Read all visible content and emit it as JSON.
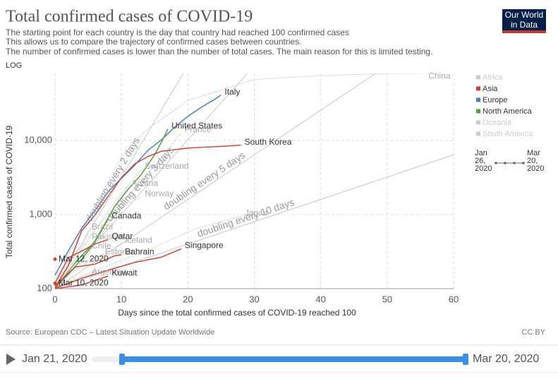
{
  "chart_data": {
    "type": "line",
    "title": "Total confirmed cases of COVID-19",
    "subtitle": [
      "The starting point for each country is the day that country had reached 100 confirmed cases",
      "This allows us to compare the trajectory of confirmed cases between countries.",
      "The number of confirmed cases is lower than the number of total cases. The main reason for this is limited testing."
    ],
    "scale_label": "LOG",
    "log_scale": true,
    "grid": true,
    "logo": [
      "Our World",
      "in Data"
    ],
    "x_label": "Days since the total confirmed cases of COVID-19 reached 100",
    "y_label": "Total confirmed cases of COVID-19",
    "source": "Source: European CDC – Latest Situation Update Worldwide",
    "license": "CC BY",
    "xlim": [
      0,
      60
    ],
    "xticks": [
      0,
      10,
      20,
      30,
      40,
      50,
      60
    ],
    "ylim": [
      100,
      80000
    ],
    "yticks": [
      100,
      {
        "value": 1000,
        "label": "1,000"
      },
      {
        "value": 10000,
        "label": "10,000"
      }
    ],
    "legend_position": "right",
    "regions": [
      {
        "name": "Africa",
        "color": "#cccccc",
        "active": false
      },
      {
        "name": "Asia",
        "color": "#d0453a",
        "active": true
      },
      {
        "name": "Europe",
        "color": "#4c7fc0",
        "active": true
      },
      {
        "name": "North America",
        "color": "#5a9f45",
        "active": true
      },
      {
        "name": "Oceania",
        "color": "#cccccc",
        "active": false
      },
      {
        "name": "South America",
        "color": "#cccccc",
        "active": false
      }
    ],
    "legend_dates": [
      "Jan 26, 2020",
      "Mar 20, 2020"
    ],
    "doubling_lines": [
      {
        "label": "doubling every 2 days",
        "days": 2
      },
      {
        "label": "doubling every 3 days",
        "days": 3
      },
      {
        "label": "doubling every 5 days",
        "days": 5
      },
      {
        "label": "doubling every 10 days",
        "days": 10
      }
    ],
    "series": [
      {
        "name": "China",
        "color": "#dddddd",
        "selected": false,
        "x": [
          0,
          2,
          4,
          6,
          8,
          10,
          12,
          14,
          20,
          30,
          40,
          50,
          59
        ],
        "values": [
          100,
          291,
          571,
          1287,
          2744,
          5974,
          9692,
          14380,
          34546,
          66492,
          75077,
          80026,
          80967
        ]
      },
      {
        "name": "France",
        "color": "#dddddd",
        "selected": false,
        "x": [
          0,
          5,
          10,
          15,
          19
        ],
        "values": [
          100,
          285,
          1412,
          4469,
          12612
        ]
      },
      {
        "name": "Switzerland",
        "color": "#dddddd",
        "selected": false,
        "x": [
          0,
          4,
          8,
          13
        ],
        "values": [
          100,
          337,
          1125,
          4075
        ]
      },
      {
        "name": "Austria",
        "color": "#dddddd",
        "selected": false,
        "x": [
          0,
          4,
          8,
          11
        ],
        "values": [
          102,
          246,
          860,
          2388
        ]
      },
      {
        "name": "Norway",
        "color": "#dddddd",
        "selected": false,
        "x": [
          0,
          4,
          8,
          13
        ],
        "values": [
          113,
          400,
          996,
          1742
        ]
      },
      {
        "name": "Brazil",
        "color": "#dddddd",
        "selected": false,
        "x": [
          0,
          3,
          5
        ],
        "values": [
          121,
          234,
          621
        ]
      },
      {
        "name": "Pakistan",
        "color": "#dddddd",
        "selected": false,
        "x": [
          0,
          3,
          5
        ],
        "values": [
          136,
          302,
          454
        ]
      },
      {
        "name": "Chile",
        "color": "#dddddd",
        "selected": false,
        "x": [
          0,
          3,
          5
        ],
        "values": [
          155,
          238,
          342
        ]
      },
      {
        "name": "Iceland",
        "color": "#dddddd",
        "selected": false,
        "x": [
          0,
          5,
          10
        ],
        "values": [
          117,
          225,
          409
        ]
      },
      {
        "name": "Estonia",
        "color": "#dddddd",
        "selected": false,
        "x": [
          0,
          4,
          7
        ],
        "values": [
          115,
          225,
          283
        ]
      },
      {
        "name": "Argentina",
        "color": "#dddddd",
        "selected": false,
        "x": [
          0,
          3,
          5
        ],
        "values": [
          100,
          128,
          152
        ]
      },
      {
        "name": "Japan",
        "color": "#dddddd",
        "selected": false,
        "x": [
          0,
          7,
          14,
          21,
          28
        ],
        "values": [
          105,
          190,
          331,
          639,
          950
        ]
      },
      {
        "name": "Italy",
        "color": "#4c7fc0",
        "selected": true,
        "x": [
          0,
          2,
          4,
          6,
          8,
          10,
          12,
          14,
          16,
          18,
          20,
          22,
          24,
          25
        ],
        "values": [
          152,
          322,
          650,
          1128,
          2036,
          3089,
          4636,
          7375,
          10149,
          15113,
          21157,
          27980,
          35713,
          41035
        ]
      },
      {
        "name": "United States",
        "color": "#5a9f45",
        "selected": true,
        "x": [
          0,
          3,
          6,
          9,
          11,
          13,
          15,
          16,
          17
        ],
        "values": [
          100,
          221,
          435,
          1301,
          2183,
          3499,
          6421,
          9415,
          14250
        ]
      },
      {
        "name": "South Korea",
        "color": "#d0453a",
        "selected": true,
        "x": [
          0,
          2,
          4,
          6,
          8,
          10,
          12,
          14,
          16,
          18,
          20,
          22,
          24,
          26,
          28
        ],
        "values": [
          104,
          204,
          602,
          977,
          1766,
          3150,
          4812,
          6088,
          7134,
          7513,
          7869,
          8086,
          8236,
          8413,
          8652
        ]
      },
      {
        "name": "Canada",
        "color": "#5a9f45",
        "selected": true,
        "x": [
          0,
          2,
          4,
          6,
          8
        ],
        "values": [
          103,
          157,
          249,
          424,
          873
        ]
      },
      {
        "name": "Qatar",
        "color": "#d0453a",
        "selected": true,
        "x": [
          0,
          2,
          4,
          6,
          8
        ],
        "values": [
          119,
          262,
          320,
          401,
          460
        ]
      },
      {
        "name": "Bahrain",
        "color": "#d0453a",
        "selected": true,
        "x": [
          0,
          3,
          6,
          9,
          10
        ],
        "values": [
          109,
          195,
          214,
          278,
          285
        ]
      },
      {
        "name": "Singapore",
        "color": "#d0453a",
        "selected": true,
        "x": [
          0,
          4,
          8,
          12,
          16,
          19
        ],
        "values": [
          102,
          138,
          178,
          226,
          266,
          345
        ]
      },
      {
        "name": "Kuwait",
        "color": "#d0453a",
        "selected": true,
        "x": [
          0,
          4,
          8
        ],
        "values": [
          100,
          112,
          148
        ]
      },
      {
        "name": "Mar 12, 2020",
        "color": "#d0453a",
        "selected": true,
        "x": [
          0
        ],
        "values": [
          250
        ]
      },
      {
        "name": "Mar 10, 2020",
        "color": "#d0453a",
        "selected": true,
        "x": [
          0
        ],
        "values": [
          118
        ]
      }
    ],
    "timeline": {
      "start": "Jan 21, 2020",
      "end": "Mar 20, 2020"
    }
  }
}
